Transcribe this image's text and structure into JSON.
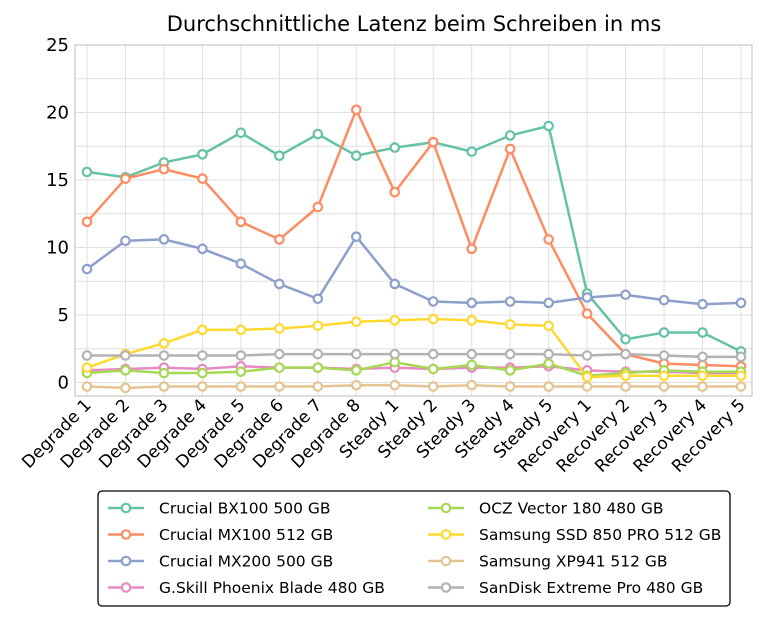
{
  "chart_data": {
    "type": "line",
    "title": "Durchschnittliche Latenz beim Schreiben in ms",
    "xlabel": "",
    "ylabel": "",
    "ylim": [
      0,
      25
    ],
    "yticks": [
      "0",
      "5",
      "10",
      "15",
      "20",
      "25"
    ],
    "grid": true,
    "legend_position": "bottom",
    "categories": [
      "Degrade 1",
      "Degrade 2",
      "Degrade 3",
      "Degrade 4",
      "Degrade 5",
      "Degrade 6",
      "Degrade 7",
      "Degrade 8",
      "Steady 1",
      "Steady 2",
      "Steady 3",
      "Steady 4",
      "Steady 5",
      "Recovery 1",
      "Recovery 2",
      "Recovery 3",
      "Recovery 4",
      "Recovery 5"
    ],
    "series": [
      {
        "name": "Crucial BX100 500 GB",
        "color": "#66c2a5",
        "values": [
          15.6,
          15.2,
          16.3,
          16.9,
          18.5,
          16.8,
          18.4,
          16.8,
          17.4,
          17.8,
          17.1,
          18.3,
          19.0,
          6.6,
          3.2,
          3.7,
          3.7,
          2.3
        ]
      },
      {
        "name": "Crucial MX100 512 GB",
        "color": "#fc8d62",
        "values": [
          11.9,
          15.1,
          15.8,
          15.1,
          11.9,
          10.6,
          13.0,
          20.2,
          14.1,
          17.8,
          9.9,
          17.3,
          10.6,
          5.1,
          2.1,
          1.4,
          1.3,
          1.2
        ]
      },
      {
        "name": "Crucial MX200 500 GB",
        "color": "#8da0cb",
        "values": [
          8.4,
          10.5,
          10.6,
          9.9,
          8.8,
          7.3,
          6.2,
          10.8,
          7.3,
          6.0,
          5.9,
          6.0,
          5.9,
          6.3,
          6.5,
          6.1,
          5.8,
          5.9
        ]
      },
      {
        "name": "G.Skill Phoenix Blade 480 GB",
        "color": "#e78ac3",
        "values": [
          0.9,
          1.0,
          1.1,
          1.0,
          1.2,
          1.1,
          1.1,
          1.0,
          1.1,
          1.0,
          1.1,
          1.1,
          1.2,
          0.9,
          0.8,
          0.8,
          0.7,
          0.7
        ]
      },
      {
        "name": "OCZ Vector 180 480 GB",
        "color": "#a6d854",
        "values": [
          0.7,
          0.9,
          0.7,
          0.7,
          0.8,
          1.1,
          1.1,
          0.9,
          1.5,
          1.0,
          1.3,
          0.9,
          1.4,
          0.5,
          0.7,
          0.9,
          0.8,
          0.8
        ]
      },
      {
        "name": "Samsung SSD 850 PRO 512 GB",
        "color": "#ffd92f",
        "values": [
          1.1,
          2.1,
          2.9,
          3.9,
          3.9,
          4.0,
          4.2,
          4.5,
          4.6,
          4.7,
          4.6,
          4.3,
          4.2,
          0.4,
          0.5,
          0.5,
          0.5,
          0.5
        ]
      },
      {
        "name": "Samsung XP941 512 GB",
        "color": "#e5c494",
        "values": [
          -0.3,
          -0.4,
          -0.3,
          -0.3,
          -0.3,
          -0.3,
          -0.3,
          -0.2,
          -0.2,
          -0.3,
          -0.2,
          -0.3,
          -0.3,
          -0.3,
          -0.3,
          -0.3,
          -0.3,
          -0.3
        ]
      },
      {
        "name": "SanDisk Extreme Pro 480 GB",
        "color": "#b3b3b3",
        "values": [
          2.0,
          2.0,
          2.0,
          2.0,
          2.0,
          2.1,
          2.1,
          2.1,
          2.1,
          2.1,
          2.1,
          2.1,
          2.1,
          2.0,
          2.1,
          2.0,
          1.9,
          1.9
        ]
      }
    ]
  }
}
